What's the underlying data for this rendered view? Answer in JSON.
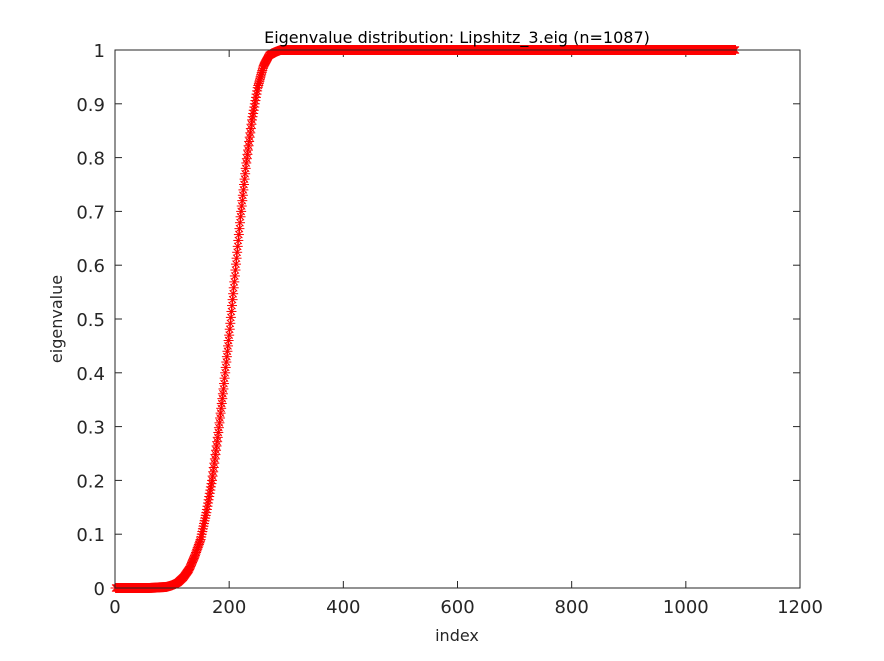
{
  "chart_data": {
    "type": "scatter",
    "title": "Eigenvalue distribution: Lipshitz_3.eig (n=1087)",
    "xlabel": "index",
    "ylabel": "eigenvalue",
    "xlim": [
      0,
      1200
    ],
    "ylim": [
      0,
      1
    ],
    "xticks": [
      0,
      200,
      400,
      600,
      800,
      1000,
      1200
    ],
    "yticks": [
      0,
      0.1,
      0.2,
      0.3,
      0.4,
      0.5,
      0.6,
      0.7,
      0.8,
      0.9,
      1
    ],
    "xtick_labels": [
      "0",
      "200",
      "400",
      "600",
      "800",
      "1000",
      "1200"
    ],
    "ytick_labels": [
      "0",
      "0.1",
      "0.2",
      "0.3",
      "0.4",
      "0.5",
      "0.6",
      "0.7",
      "0.8",
      "0.9",
      "1"
    ],
    "grid": false,
    "marker": "asterisk",
    "marker_color": "#ff0000",
    "line_color": "#000000",
    "series": [
      {
        "n": 1087,
        "x": [
          1,
          60,
          90,
          100,
          110,
          120,
          130,
          140,
          150,
          160,
          170,
          180,
          190,
          200,
          210,
          220,
          230,
          240,
          250,
          260,
          270,
          280,
          290,
          300,
          320,
          400,
          600,
          800,
          1000,
          1087
        ],
        "values": [
          0,
          0,
          0.002,
          0.005,
          0.01,
          0.02,
          0.035,
          0.06,
          0.09,
          0.14,
          0.2,
          0.28,
          0.37,
          0.47,
          0.58,
          0.69,
          0.79,
          0.87,
          0.93,
          0.97,
          0.99,
          0.996,
          1,
          1,
          1,
          1,
          1,
          1,
          1,
          1
        ]
      }
    ]
  }
}
